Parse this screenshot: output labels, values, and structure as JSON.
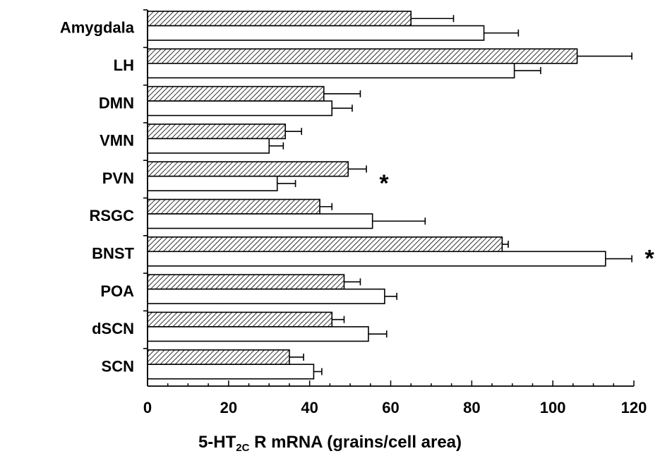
{
  "chart_data": {
    "type": "bar",
    "orientation": "horizontal",
    "categories": [
      "Amygdala",
      "LH",
      "DMN",
      "VMN",
      "PVN",
      "RSGC",
      "BNST",
      "POA",
      "dSCN",
      "SCN"
    ],
    "series": [
      {
        "fill": "hatched",
        "values": [
          65,
          106,
          43.5,
          34,
          49.5,
          42.5,
          87.5,
          48.5,
          45.5,
          35
        ],
        "errors": [
          10.5,
          13.5,
          9,
          4,
          4.5,
          3,
          1.5,
          4,
          3,
          3.5
        ]
      },
      {
        "fill": "white",
        "values": [
          83,
          90.5,
          45.5,
          30,
          32,
          55.5,
          113,
          58.5,
          54.5,
          41
        ],
        "errors": [
          8.5,
          6.5,
          5,
          3.5,
          4.5,
          13,
          6.5,
          3,
          4.5,
          2
        ]
      }
    ],
    "annotations": [
      {
        "category": "PVN",
        "text": "*"
      },
      {
        "category": "BNST",
        "text": "*"
      }
    ],
    "xlim": [
      0,
      120
    ],
    "xticks": [
      "0",
      "20",
      "40",
      "60",
      "80",
      "100",
      "120"
    ],
    "xlabel": {
      "main": "5-HT",
      "sub": "2C",
      "rest": " R mRNA (grains/cell area)"
    },
    "ylabel": "",
    "title": "",
    "grid": false,
    "legend": "none",
    "colors": {
      "stroke": "#000000",
      "hatch": "#000000",
      "background": "#ffffff"
    }
  }
}
